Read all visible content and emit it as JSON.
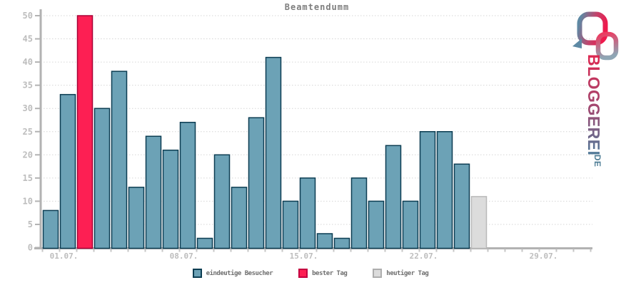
{
  "title": "Beamtendumm",
  "legend": {
    "items": [
      {
        "label": "eindeutige Besucher",
        "color": "#6CA2B6",
        "border": "#0C3D52"
      },
      {
        "label": "bester Tag",
        "color": "#FD1F53",
        "border": "#C40040"
      },
      {
        "label": "heutiger Tag",
        "color": "#DCDCDC",
        "border": "#ADADAD"
      }
    ]
  },
  "logo": {
    "text": "BLOGGEREI",
    "tld": ".DE",
    "colors": {
      "red": "#E2244E",
      "purple": "#9E4A72",
      "blue": "#4E7C9B"
    }
  },
  "chart_data": {
    "type": "bar",
    "title": "Beamtendumm",
    "xlabel": "",
    "ylabel": "",
    "ylim": [
      0,
      50
    ],
    "y_tick_step": 5,
    "y_ticks": [
      0,
      5,
      10,
      15,
      20,
      25,
      30,
      35,
      40,
      45,
      50
    ],
    "x_tick_labels": [
      "01.07.",
      "08.07.",
      "15.07.",
      "22.07.",
      "29.07."
    ],
    "x_tick_label_slots": [
      1,
      8,
      15,
      22,
      29
    ],
    "total_day_slots": 32,
    "values": [
      8,
      33,
      50,
      30,
      38,
      13,
      24,
      21,
      27,
      2,
      20,
      13,
      28,
      41,
      10,
      15,
      3,
      2,
      15,
      10,
      22,
      10,
      25,
      25,
      18,
      11
    ],
    "best_day_index": 2,
    "today_index": 25,
    "legend_entries": [
      "eindeutige Besucher",
      "bester Tag",
      "heutiger Tag"
    ],
    "colors": {
      "visitor_fill": "#6CA2B6",
      "visitor_border": "#0C3D52",
      "best_fill": "#FD1F53",
      "best_border": "#A80136",
      "today_fill": "#DCDCDC",
      "today_border": "#B9B9B9",
      "axis": "#B2B2B2",
      "grid": "#D6D6D6",
      "tick_label": "#BDBDBD",
      "title_text": "#7E7E7E"
    },
    "grid": "horizontal dotted, every 5 units",
    "legend_position": "bottom center"
  }
}
